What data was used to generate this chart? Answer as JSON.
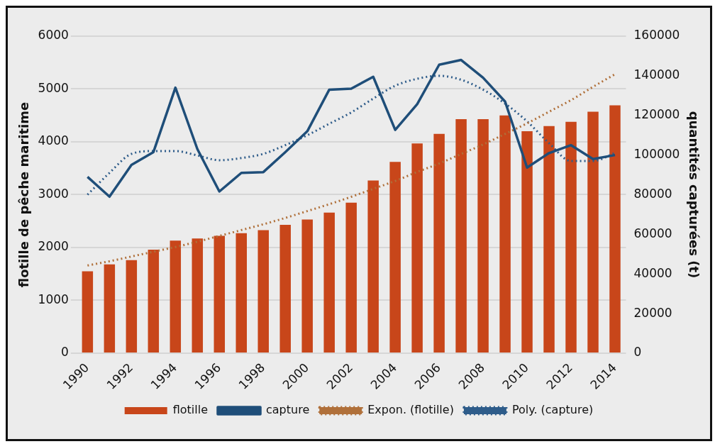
{
  "chart_data": {
    "type": "bar",
    "ylabel": "flotille de pêche maritime",
    "y2label": "quantités capturées (t)",
    "categories": [
      "1990",
      null,
      "1992",
      null,
      "1994",
      null,
      "1996",
      null,
      "1998",
      null,
      "2000",
      null,
      "2002",
      null,
      "2004",
      null,
      "2006",
      null,
      "2008",
      null,
      "2010",
      null,
      "2012",
      null,
      "2014"
    ],
    "series": [
      {
        "name": "flotille",
        "color": "#c8461a",
        "values": [
          1550,
          1680,
          1760,
          1960,
          2130,
          2170,
          2220,
          2270,
          2330,
          2430,
          2530,
          2660,
          2850,
          3270,
          3620,
          3970,
          4150,
          4430,
          4430,
          4500,
          4200,
          4300,
          4380,
          4570,
          4690
        ]
      },
      {
        "name": "capture",
        "type": "line",
        "axis": "y2",
        "color": "#1f4e79",
        "marker": "none",
        "values": [
          89000,
          79000,
          95000,
          101500,
          134000,
          103000,
          81600,
          91000,
          91400,
          101500,
          112000,
          133000,
          133500,
          139500,
          112700,
          125700,
          145600,
          148000,
          139000,
          127000,
          93700,
          101000,
          105000,
          98000,
          100000
        ]
      },
      {
        "name": "Expon. (flotille)",
        "type": "line",
        "line_style": "dotted",
        "marker": "none",
        "color": "#b0703a",
        "values": [
          1660,
          1740,
          1830,
          1920,
          2010,
          2110,
          2220,
          2330,
          2440,
          2560,
          2690,
          2820,
          2960,
          3110,
          3260,
          3430,
          3590,
          3770,
          3950,
          4150,
          4350,
          4570,
          4790,
          5040,
          5280
        ]
      },
      {
        "name": "Poly. (capture)",
        "type": "line",
        "axis": "y2",
        "line_style": "dotted",
        "marker": "none",
        "color": "#2e5c8a",
        "values": [
          80000,
          91000,
          100600,
          102000,
          102000,
          99800,
          97400,
          98500,
          100600,
          105000,
          110000,
          115800,
          121500,
          128500,
          135000,
          138500,
          140000,
          138000,
          133000,
          126000,
          117000,
          106000,
          97000,
          97000,
          101000
        ]
      }
    ],
    "ylim": [
      0,
      6000
    ],
    "yticks": [
      0,
      1000,
      2000,
      3000,
      4000,
      5000,
      6000
    ],
    "y2lim": [
      0,
      160000
    ],
    "y2ticks": [
      0,
      20000,
      40000,
      60000,
      80000,
      100000,
      120000,
      140000,
      160000
    ],
    "grid": "y",
    "legend": "bottom"
  }
}
